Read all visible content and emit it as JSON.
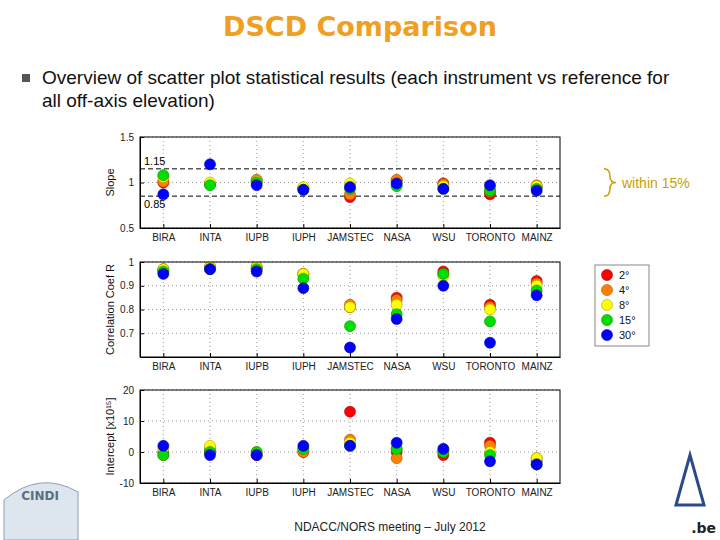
{
  "title": "DSCD Comparison",
  "bullet": "Overview of scatter plot statistical results (each instrument vs reference for all off-axis elevation)",
  "footer": "NDACC/NORS meeting – July 2012",
  "logo_texts": [
    "CINDI",
    ".be"
  ],
  "chart_data": [
    {
      "type": "scatter",
      "y_label": "Slope",
      "categories": [
        "BIRA",
        "INTA",
        "IUPB",
        "IUPH",
        "JAMSTEC",
        "NASA",
        "WSU",
        "TORONTO",
        "MAINZ"
      ],
      "ylim": [
        0.5,
        1.5
      ],
      "yticks": [
        0.5,
        1,
        1.5
      ],
      "grid": true,
      "marker": "circle",
      "reference_lines": [
        1.15,
        0.85
      ],
      "annotations": [
        "within 15%"
      ],
      "series": [
        {
          "color": "#ff0000",
          "values": [
            1.0,
            0.98,
            1.02,
            0.93,
            0.84,
            1.02,
            0.99,
            0.87,
            0.95
          ]
        },
        {
          "color": "#ff7f00",
          "values": [
            1.01,
            0.99,
            1.03,
            0.94,
            0.87,
            1.03,
            0.98,
            0.9,
            0.97
          ]
        },
        {
          "color": "#ffff00",
          "values": [
            1.06,
            1.0,
            1.01,
            0.95,
            0.99,
            0.98,
            0.96,
            0.94,
            0.96
          ]
        },
        {
          "color": "#00dd00",
          "values": [
            1.08,
            0.97,
            1.0,
            0.92,
            0.93,
            0.96,
            0.93,
            0.91,
            0.93
          ]
        },
        {
          "color": "#0000ff",
          "values": [
            0.87,
            1.2,
            0.97,
            0.92,
            0.95,
            0.99,
            0.93,
            0.97,
            0.91
          ]
        }
      ]
    },
    {
      "type": "scatter",
      "y_label": "Correlation Coef R",
      "categories": [
        "BIRA",
        "INTA",
        "IUPB",
        "IUPH",
        "JAMSTEC",
        "NASA",
        "WSU",
        "TORONTO",
        "MAINZ"
      ],
      "ylim": [
        0.6,
        1
      ],
      "yticks": [
        0.7,
        0.8,
        0.9,
        1
      ],
      "grid": true,
      "marker": "circle",
      "legend": "right",
      "series": [
        {
          "name": "2°",
          "color": "#ff0000",
          "values": [
            0.97,
            0.98,
            0.98,
            0.95,
            0.81,
            0.85,
            0.96,
            0.82,
            0.92
          ]
        },
        {
          "name": "4°",
          "color": "#ff7f00",
          "values": [
            0.96,
            0.97,
            0.97,
            0.95,
            0.82,
            0.84,
            0.95,
            0.81,
            0.91
          ]
        },
        {
          "name": "8°",
          "color": "#ffff00",
          "values": [
            0.97,
            0.98,
            0.98,
            0.95,
            0.81,
            0.82,
            0.94,
            0.8,
            0.9
          ]
        },
        {
          "name": "15°",
          "color": "#00dd00",
          "values": [
            0.96,
            0.97,
            0.97,
            0.93,
            0.73,
            0.78,
            0.95,
            0.75,
            0.88
          ]
        },
        {
          "name": "30°",
          "color": "#0000ff",
          "values": [
            0.95,
            0.97,
            0.96,
            0.89,
            0.64,
            0.76,
            0.9,
            0.66,
            0.86
          ]
        }
      ]
    },
    {
      "type": "scatter",
      "y_label": "Intercept [x10¹⁵]",
      "categories": [
        "BIRA",
        "INTA",
        "IUPB",
        "IUPH",
        "JAMSTEC",
        "NASA",
        "WSU",
        "TORONTO",
        "MAINZ"
      ],
      "ylim": [
        -10,
        20
      ],
      "yticks": [
        -10,
        0,
        10,
        20
      ],
      "grid": true,
      "marker": "circle",
      "series": [
        {
          "color": "#ff0000",
          "values": [
            0,
            0,
            -1,
            0,
            13,
            0,
            -1,
            3,
            -3
          ]
        },
        {
          "color": "#ff7f00",
          "values": [
            -1,
            1,
            -1,
            0,
            4,
            -2,
            0,
            2,
            -2
          ]
        },
        {
          "color": "#ffff00",
          "values": [
            1,
            2,
            0,
            1,
            3,
            1,
            1,
            0,
            -2
          ]
        },
        {
          "color": "#00dd00",
          "values": [
            -1,
            0,
            0,
            1,
            2,
            1,
            0,
            -1,
            -4
          ]
        },
        {
          "color": "#0000ff",
          "values": [
            2,
            -1,
            -1,
            2,
            2,
            3,
            1,
            -3,
            -4
          ]
        }
      ]
    }
  ]
}
